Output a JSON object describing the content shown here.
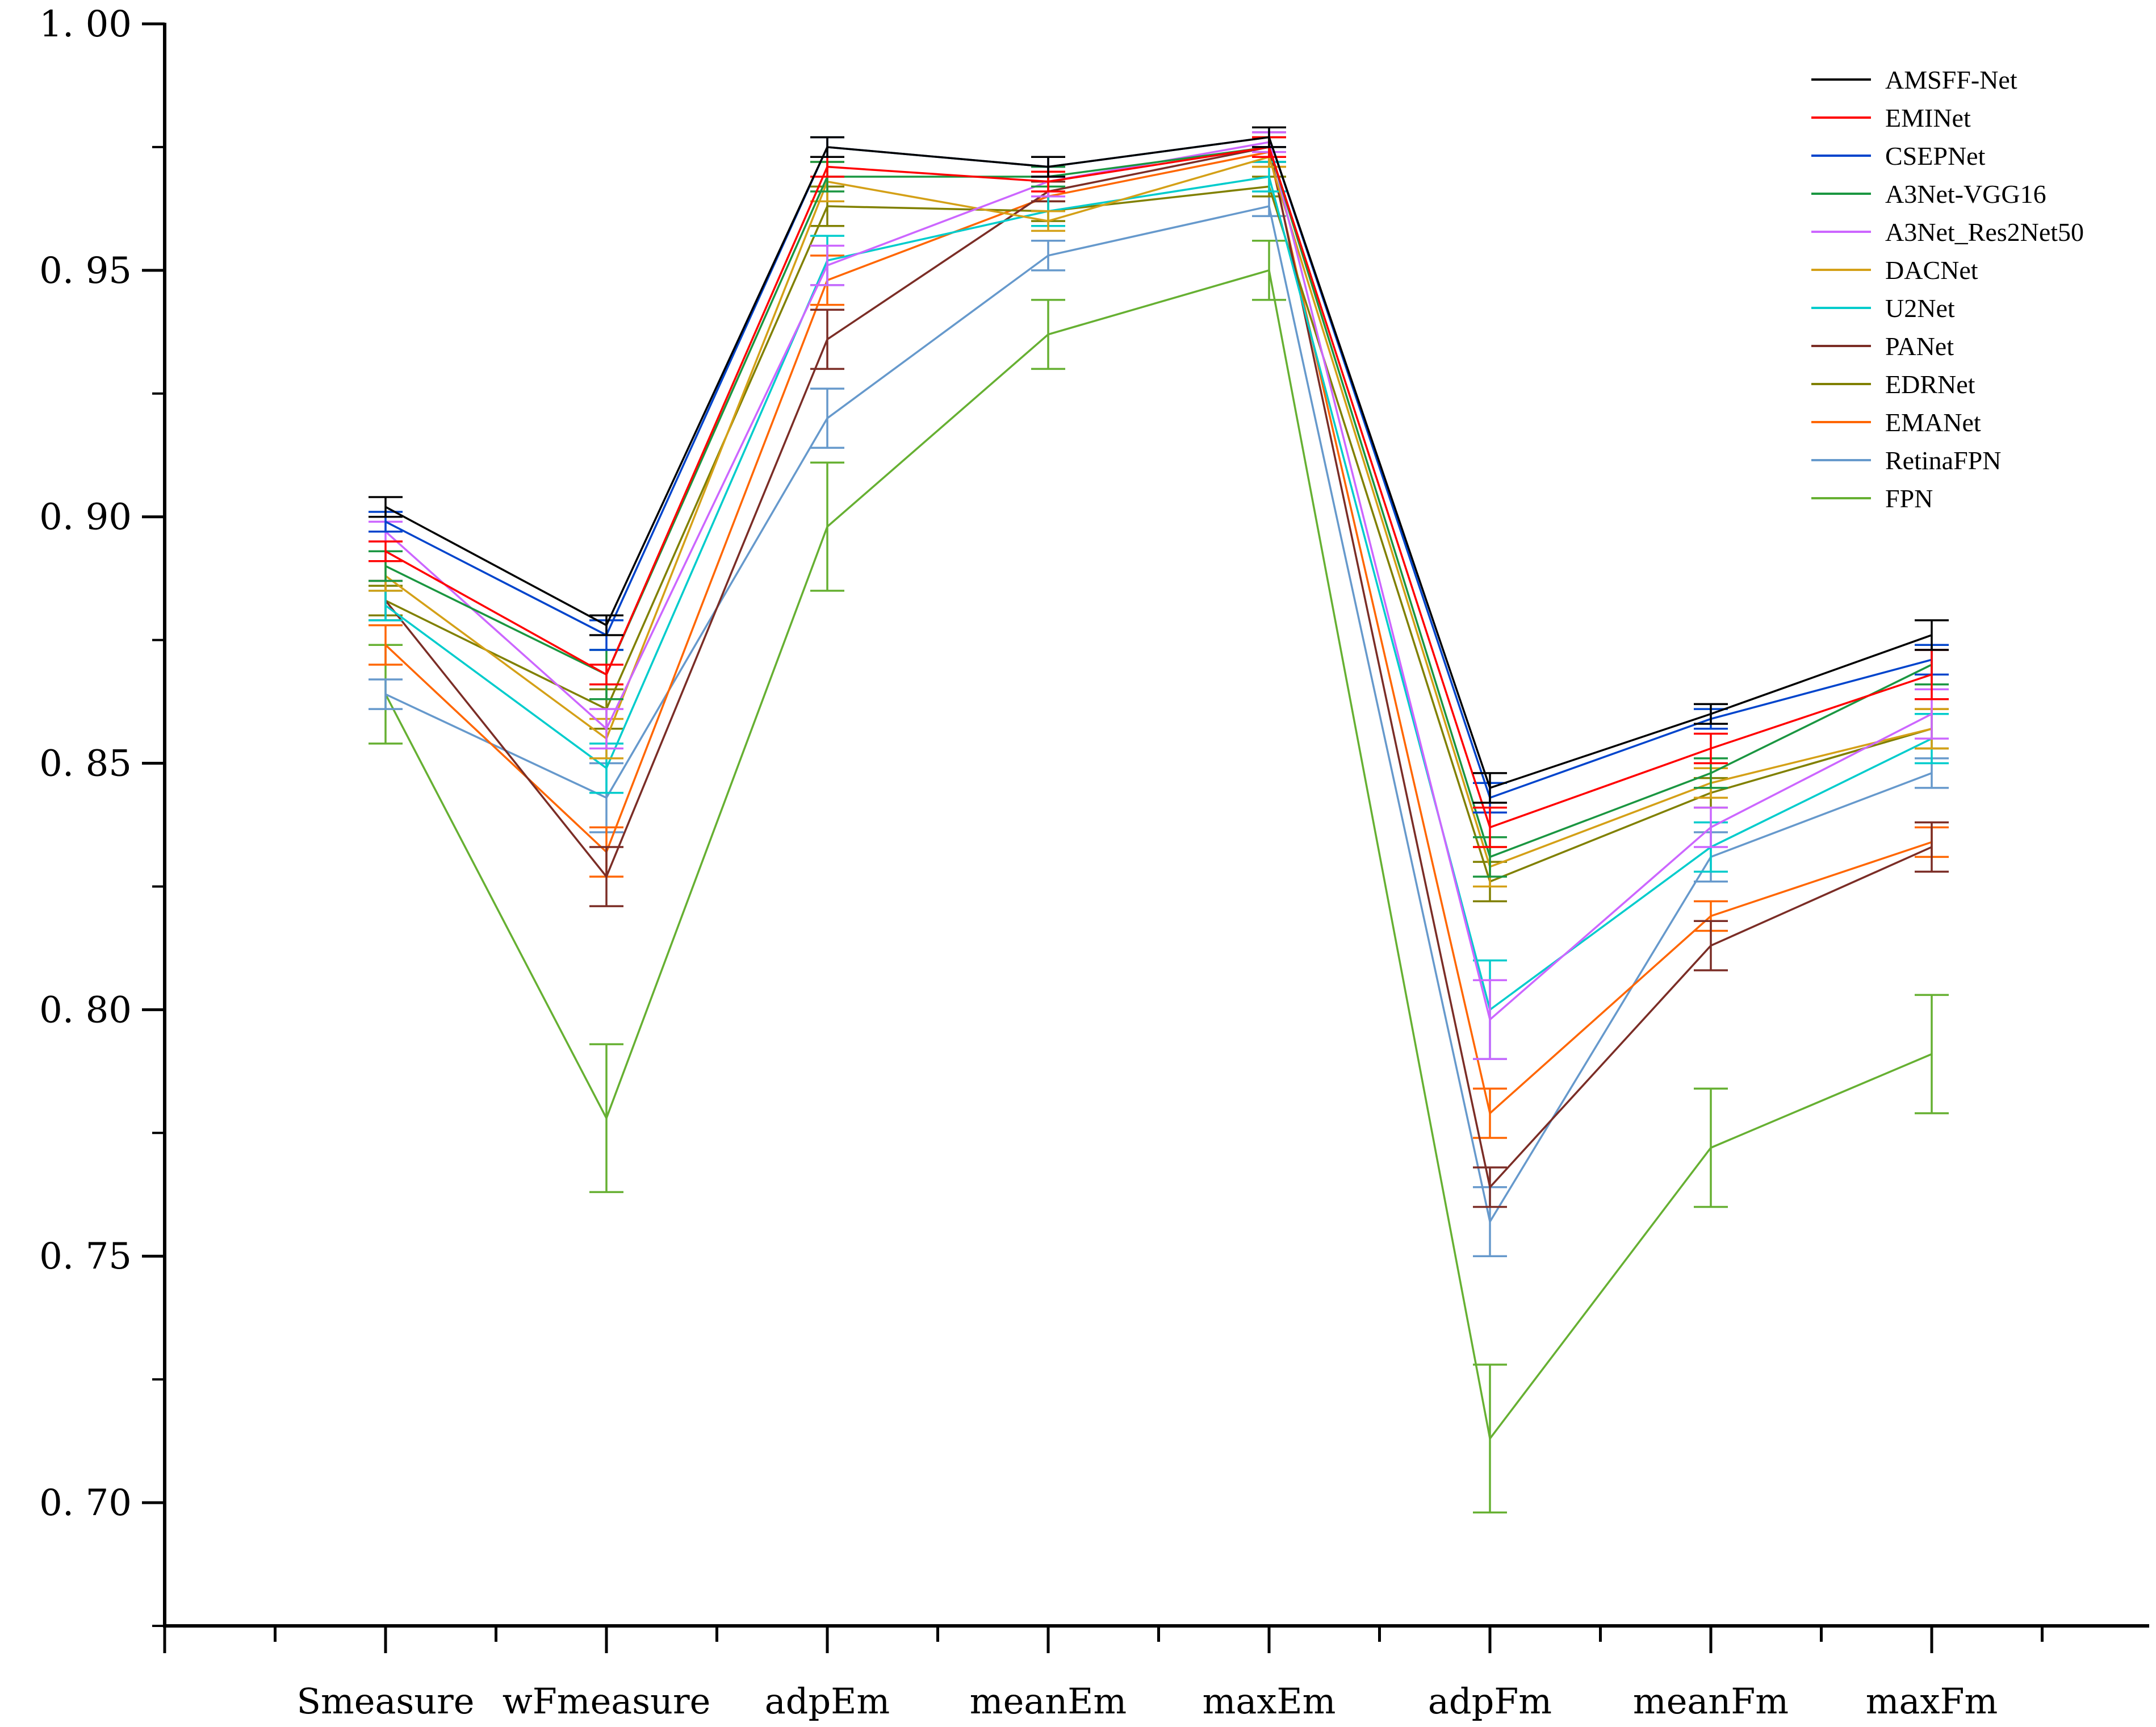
{
  "chart_data": {
    "type": "line",
    "title": "",
    "xlabel": "",
    "ylabel": "",
    "categories": [
      "Smeasure",
      "wFmeasure",
      "adpEm",
      "meanEm",
      "maxEm",
      "adpFm",
      "meanFm",
      "maxFm"
    ],
    "ylim": [
      0.675,
      1.0
    ],
    "yticks": [
      0.7,
      0.75,
      0.8,
      0.85,
      0.9,
      0.95,
      1.0
    ],
    "ytick_labels": [
      "0. 70",
      "0. 75",
      "0. 80",
      "0. 85",
      "0. 90",
      "0. 95",
      "1. 00"
    ],
    "legend_position": "top-right",
    "error_bars": true,
    "series": [
      {
        "name": "AMSFF-Net",
        "color": "#000000",
        "values": [
          0.902,
          0.878,
          0.975,
          0.971,
          0.977,
          0.845,
          0.86,
          0.876
        ],
        "errors": [
          0.002,
          0.002,
          0.002,
          0.002,
          0.002,
          0.003,
          0.002,
          0.003
        ]
      },
      {
        "name": "EMINet",
        "color": "#ff0000",
        "values": [
          0.893,
          0.868,
          0.971,
          0.968,
          0.975,
          0.837,
          0.853,
          0.868
        ],
        "errors": [
          0.002,
          0.002,
          0.002,
          0.002,
          0.002,
          0.004,
          0.003,
          0.005
        ]
      },
      {
        "name": "CSEPNet",
        "color": "#0044cc",
        "values": [
          0.899,
          0.876,
          0.975,
          0.971,
          0.977,
          0.843,
          0.859,
          0.871
        ],
        "errors": [
          0.002,
          0.003,
          0.002,
          0.002,
          0.002,
          0.003,
          0.002,
          0.003
        ]
      },
      {
        "name": "A3Net-VGG16",
        "color": "#1a9641",
        "values": [
          0.89,
          0.868,
          0.969,
          0.969,
          0.975,
          0.831,
          0.848,
          0.87
        ],
        "errors": [
          0.003,
          0.005,
          0.003,
          0.002,
          0.002,
          0.004,
          0.003,
          0.004
        ]
      },
      {
        "name": "A3Net_Res2Net50",
        "color": "#cc66ff",
        "values": [
          0.897,
          0.857,
          0.951,
          0.968,
          0.976,
          0.798,
          0.837,
          0.86
        ],
        "errors": [
          0.002,
          0.004,
          0.004,
          0.003,
          0.002,
          0.008,
          0.004,
          0.005
        ]
      },
      {
        "name": "DACNet",
        "color": "#d4a017",
        "values": [
          0.888,
          0.855,
          0.968,
          0.96,
          0.973,
          0.829,
          0.846,
          0.857
        ],
        "errors": [
          0.003,
          0.004,
          0.004,
          0.002,
          0.002,
          0.004,
          0.003,
          0.004
        ]
      },
      {
        "name": "U2Net",
        "color": "#00cccc",
        "values": [
          0.882,
          0.849,
          0.952,
          0.962,
          0.969,
          0.8,
          0.833,
          0.855
        ],
        "errors": [
          0.003,
          0.005,
          0.005,
          0.003,
          0.003,
          0.01,
          0.005,
          0.005
        ]
      },
      {
        "name": "PANet",
        "color": "#7b2d26",
        "values": [
          0.883,
          0.827,
          0.936,
          0.966,
          0.975,
          0.764,
          0.813,
          0.833
        ],
        "errors": [
          0.004,
          0.006,
          0.006,
          0.002,
          0.003,
          0.004,
          0.005,
          0.005
        ]
      },
      {
        "name": "EDRNet",
        "color": "#808000",
        "values": [
          0.883,
          0.861,
          0.963,
          0.962,
          0.967,
          0.826,
          0.844,
          0.857
        ],
        "errors": [
          0.003,
          0.004,
          0.004,
          0.002,
          0.002,
          0.004,
          0.003,
          0.004
        ]
      },
      {
        "name": "EMANet",
        "color": "#ff6600",
        "values": [
          0.874,
          0.832,
          0.948,
          0.965,
          0.974,
          0.779,
          0.819,
          0.834
        ],
        "errors": [
          0.004,
          0.005,
          0.005,
          0.003,
          0.003,
          0.005,
          0.003,
          0.003
        ]
      },
      {
        "name": "RetinaFPN",
        "color": "#6699cc",
        "values": [
          0.864,
          0.843,
          0.92,
          0.953,
          0.963,
          0.757,
          0.831,
          0.848
        ],
        "errors": [
          0.003,
          0.007,
          0.006,
          0.003,
          0.002,
          0.007,
          0.005,
          0.003
        ]
      },
      {
        "name": "FPN",
        "color": "#66b032",
        "values": [
          0.864,
          0.778,
          0.898,
          0.937,
          0.95,
          0.713,
          0.772,
          0.791
        ],
        "errors": [
          0.01,
          0.015,
          0.013,
          0.007,
          0.006,
          0.015,
          0.012,
          0.012
        ]
      }
    ]
  }
}
